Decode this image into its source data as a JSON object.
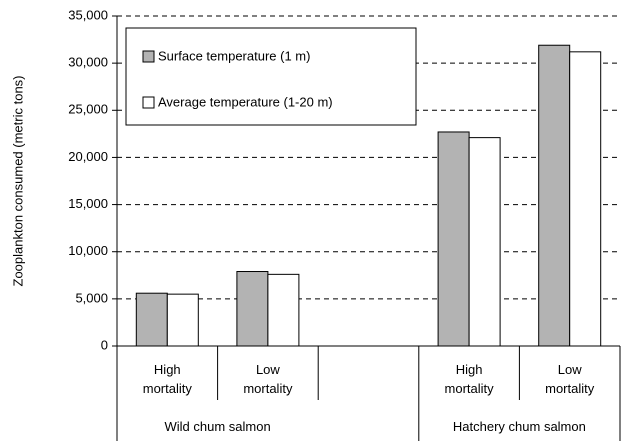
{
  "chart_data": {
    "type": "bar",
    "y_axis_label": "Zooplankton consumed (metric tons)",
    "categories": [
      "High mortality",
      "Low mortality",
      null,
      "High mortality",
      "Low mortality"
    ],
    "groups": [
      "Wild chum salmon",
      "Hatchery chum salmon"
    ],
    "series": [
      {
        "name": "Surface temperature (1 m)",
        "color": "#b3b3b3",
        "values": [
          5600,
          7900,
          null,
          22700,
          31900
        ]
      },
      {
        "name": "Average temperature (1-20 m)",
        "color": "#ffffff",
        "values": [
          5500,
          7600,
          null,
          22100,
          31200
        ]
      }
    ],
    "ylim": [
      0,
      35000
    ],
    "yticks": [
      0,
      {
        "value": 5000,
        "label": "5,000"
      },
      {
        "value": 10000,
        "label": "10,000"
      },
      {
        "value": 15000,
        "label": "15,000"
      },
      {
        "value": 20000,
        "label": "20,000"
      },
      {
        "value": 25000,
        "label": "25,000"
      },
      {
        "value": 30000,
        "label": "30,000"
      },
      {
        "value": 35000,
        "label": "35,000"
      }
    ],
    "grid": true,
    "legend": "upper left"
  }
}
